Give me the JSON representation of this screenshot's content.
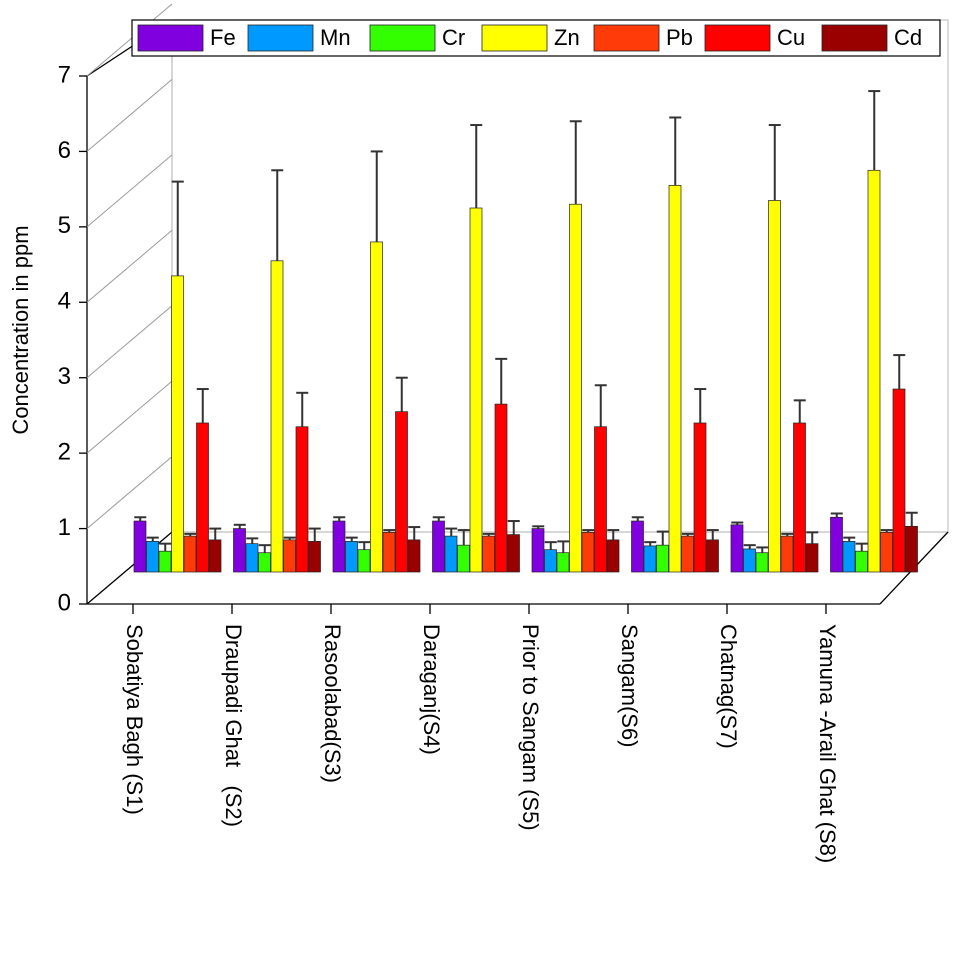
{
  "chart_data": {
    "type": "bar",
    "title": "",
    "xlabel": "",
    "ylabel": "Concentration in ppm",
    "ylim": [
      0,
      7
    ],
    "yticks": [
      "0",
      "1",
      "2",
      "3",
      "4",
      "5",
      "6",
      "7"
    ],
    "legend_position": "top",
    "grid": false,
    "categories": [
      "Sobatiya Bagh (S1)",
      "Draupadi Ghat   (S2)",
      "Rasoolabad(S3)",
      "Daraganj(S4)",
      "Prior to Sangam (S5)",
      "Sangam(S6)",
      "Chatnag(S7)",
      "Yamuna -Arail Ghat (S8)"
    ],
    "series": [
      {
        "name": "Fe",
        "color": "#8000e0",
        "values": [
          1.1,
          1.0,
          1.1,
          1.1,
          1.0,
          1.1,
          1.05,
          1.15
        ],
        "errors": [
          0.05,
          0.05,
          0.05,
          0.05,
          0.03,
          0.05,
          0.03,
          0.05
        ]
      },
      {
        "name": "Mn",
        "color": "#0099ff",
        "values": [
          0.83,
          0.8,
          0.83,
          0.9,
          0.72,
          0.77,
          0.73,
          0.83
        ],
        "errors": [
          0.05,
          0.07,
          0.05,
          0.1,
          0.1,
          0.05,
          0.05,
          0.05
        ]
      },
      {
        "name": "Cr",
        "color": "#33ff00",
        "values": [
          0.7,
          0.68,
          0.72,
          0.78,
          0.68,
          0.78,
          0.68,
          0.7
        ],
        "errors": [
          0.1,
          0.1,
          0.1,
          0.2,
          0.15,
          0.18,
          0.07,
          0.1
        ]
      },
      {
        "name": "Zn",
        "color": "#ffff00",
        "values": [
          4.35,
          4.55,
          4.8,
          5.25,
          5.3,
          5.55,
          5.35,
          5.75
        ],
        "errors": [
          1.25,
          1.2,
          1.2,
          1.1,
          1.1,
          0.9,
          1.0,
          1.05
        ]
      },
      {
        "name": "Pb",
        "color": "#ff3b0a",
        "values": [
          0.9,
          0.85,
          0.95,
          0.9,
          0.95,
          0.9,
          0.9,
          0.95
        ],
        "errors": [
          0.03,
          0.03,
          0.03,
          0.03,
          0.03,
          0.03,
          0.03,
          0.03
        ]
      },
      {
        "name": "Cu",
        "color": "#ff0000",
        "values": [
          2.4,
          2.35,
          2.55,
          2.65,
          2.35,
          2.4,
          2.4,
          2.85
        ],
        "errors": [
          0.45,
          0.45,
          0.45,
          0.6,
          0.55,
          0.45,
          0.3,
          0.45
        ]
      },
      {
        "name": "Cd",
        "color": "#990000",
        "values": [
          0.85,
          0.83,
          0.85,
          0.92,
          0.85,
          0.85,
          0.8,
          1.03
        ],
        "errors": [
          0.15,
          0.17,
          0.17,
          0.18,
          0.13,
          0.13,
          0.15,
          0.18
        ]
      }
    ]
  }
}
